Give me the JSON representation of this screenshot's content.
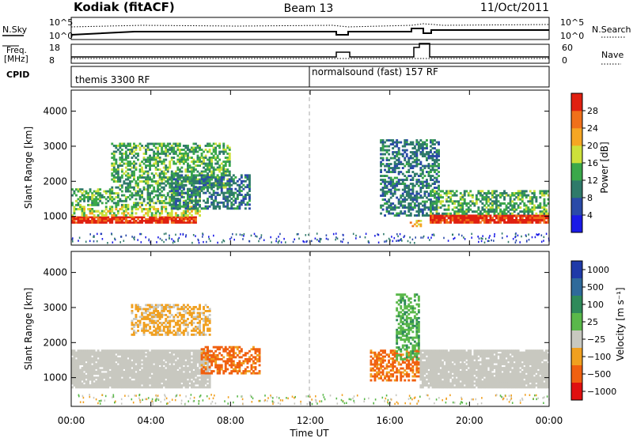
{
  "header": {
    "station": "Kodiak (fitACF)",
    "beam": "Beam 13",
    "date": "11/Oct/2011"
  },
  "aux": {
    "nsky_label": "N.Sky",
    "nsearch_label": "N.Search",
    "freq_label_line1": "Freq.",
    "freq_label_line2": "[MHz]",
    "nave_label": "Nave",
    "cpid_label": "CPID",
    "noise_ticks": [
      "10^5",
      "10^0"
    ],
    "freq_ticks": [
      "18",
      "8"
    ],
    "nave_ticks": [
      "60",
      "0"
    ],
    "cpid_segments": [
      {
        "label": "themis 3300 RF"
      },
      {
        "label": "normalsound (fast) 157 RF"
      }
    ]
  },
  "power_panel": {
    "ylabel": "Slant Range [km]",
    "yticks": [
      "1000",
      "2000",
      "3000",
      "4000"
    ],
    "colorbar_label": "Power [dB]",
    "colorbar_ticks": [
      "4",
      "8",
      "12",
      "16",
      "20",
      "24",
      "28"
    ],
    "colors": [
      "#1a1ae6",
      "#2a4aa8",
      "#2f7a6a",
      "#3aa84a",
      "#cde03a",
      "#f5a623",
      "#f0701a",
      "#e02010"
    ]
  },
  "velocity_panel": {
    "ylabel": "Slant Range [km]",
    "yticks": [
      "1000",
      "2000",
      "3000",
      "4000"
    ],
    "colorbar_label": "Velocity [m s⁻¹]",
    "colorbar_ticks": [
      "1000",
      "500",
      "100",
      "25",
      "−25",
      "−100",
      "−500",
      "−1000"
    ],
    "colors": [
      "#1f3aa8",
      "#2f6a9a",
      "#2f8a5a",
      "#5ab84a",
      "#c8c8c0",
      "#f0a020",
      "#f06010",
      "#e01010"
    ]
  },
  "xaxis": {
    "label": "Time UT",
    "ticks": [
      "00:00",
      "04:00",
      "08:00",
      "12:00",
      "16:00",
      "20:00",
      "00:00"
    ]
  },
  "chart_data": {
    "type": "heatmap",
    "x_range_hours": [
      0,
      24
    ],
    "y_range_km": [
      180,
      4600
    ],
    "power_regions": [
      {
        "t": [
          0,
          6.3
        ],
        "r": [
          800,
          1000
        ],
        "level": 7
      },
      {
        "t": [
          0,
          6.5
        ],
        "r": [
          1000,
          1300
        ],
        "level": 4
      },
      {
        "t": [
          0,
          6.5
        ],
        "r": [
          1300,
          1800
        ],
        "level": 3
      },
      {
        "t": [
          2,
          8
        ],
        "r": [
          1800,
          3100
        ],
        "level": 3
      },
      {
        "t": [
          5,
          9
        ],
        "r": [
          1200,
          2200
        ],
        "level": 2
      },
      {
        "t": [
          15.5,
          18.5
        ],
        "r": [
          1000,
          3200
        ],
        "level": 2
      },
      {
        "t": [
          17,
          17.6
        ],
        "r": [
          700,
          900
        ],
        "level": 5
      },
      {
        "t": [
          18,
          24
        ],
        "r": [
          800,
          1050
        ],
        "level": 7
      },
      {
        "t": [
          18,
          24
        ],
        "r": [
          1050,
          1750
        ],
        "level": 3
      }
    ],
    "velocity_regions": [
      {
        "t": [
          0,
          7
        ],
        "r": [
          700,
          1800
        ],
        "bin": "-25..25"
      },
      {
        "t": [
          3,
          7
        ],
        "r": [
          2200,
          3100
        ],
        "bin": "-100..-25"
      },
      {
        "t": [
          6.5,
          9.5
        ],
        "r": [
          1100,
          1900
        ],
        "bin": "-500..-100"
      },
      {
        "t": [
          15,
          17.5
        ],
        "r": [
          900,
          1800
        ],
        "bin": "-500..-100"
      },
      {
        "t": [
          16.3,
          17.5
        ],
        "r": [
          1500,
          3400
        ],
        "bin": "25..100"
      },
      {
        "t": [
          17.5,
          24
        ],
        "r": [
          700,
          1800
        ],
        "bin": "-25..25"
      }
    ],
    "cpid_change_hour": 12
  }
}
